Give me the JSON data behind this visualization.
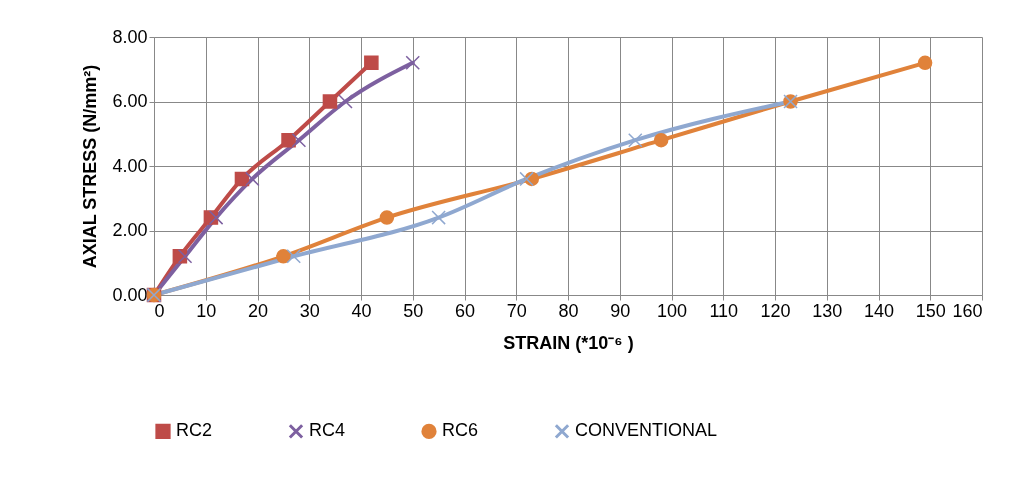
{
  "chart_data": {
    "type": "line",
    "xlabel": "STRAIN (*10⁻⁶ )",
    "ylabel": "AXIAL STRESS (N/mm²)",
    "xlim": [
      0,
      160
    ],
    "xticks": [
      0,
      10,
      20,
      30,
      40,
      50,
      60,
      70,
      80,
      90,
      100,
      110,
      120,
      130,
      140,
      150,
      160
    ],
    "ylim": [
      0,
      8
    ],
    "yticks": [
      {
        "value": 0,
        "label": "0.00"
      },
      {
        "value": 2,
        "label": "2.00"
      },
      {
        "value": 4,
        "label": "4.00"
      },
      {
        "value": 6,
        "label": "6.00"
      },
      {
        "value": 8,
        "label": "8.00"
      }
    ],
    "grid": true,
    "legend": "bottom",
    "series": [
      {
        "name": "RC2",
        "color": "#be4b48",
        "marker": "square",
        "x": [
          0,
          5,
          11,
          17,
          26,
          34,
          42
        ],
        "values": [
          0,
          1.2,
          2.4,
          3.6,
          4.8,
          6.0,
          7.2
        ]
      },
      {
        "name": "RC4",
        "color": "#7d60a0",
        "marker": "cross",
        "x": [
          0,
          6,
          12,
          19,
          28,
          37,
          50
        ],
        "values": [
          0,
          1.2,
          2.4,
          3.6,
          4.8,
          6.0,
          7.2
        ]
      },
      {
        "name": "RC6",
        "color": "#e0823a",
        "marker": "circle",
        "x": [
          0,
          25,
          45,
          73,
          98,
          123,
          149
        ],
        "values": [
          0,
          1.2,
          2.4,
          3.6,
          4.8,
          6.0,
          7.2
        ]
      },
      {
        "name": "CONVENTIONAL",
        "color": "#8fa8d0",
        "marker": "cross",
        "x": [
          0,
          27,
          55,
          72,
          93,
          123
        ],
        "values": [
          0,
          1.2,
          2.4,
          3.6,
          4.8,
          6.0
        ]
      }
    ]
  }
}
